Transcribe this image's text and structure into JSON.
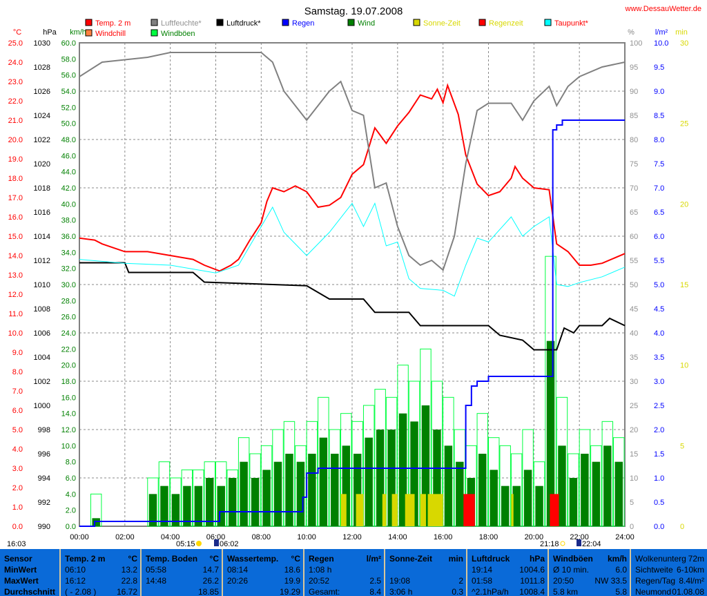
{
  "header": {
    "title": "Samstag. 19.07.2008",
    "site": "www.DessauWetter.de"
  },
  "legend": [
    {
      "label": "Temp. 2 m",
      "color": "#ff0000",
      "text_color": "#ff0000"
    },
    {
      "label": "Luftfeuchte*",
      "color": "#808080",
      "text_color": "#909090"
    },
    {
      "label": "Luftdruck*",
      "color": "#000000",
      "text_color": "#000000"
    },
    {
      "label": "Regen",
      "color": "#0000ff",
      "text_color": "#0000ff"
    },
    {
      "label": "Wind",
      "color": "#008000",
      "text_color": "#008000"
    },
    {
      "label": "Sonne-Zeit",
      "color": "#d8d800",
      "text_color": "#d8d800"
    },
    {
      "label": "Regenzeit",
      "color": "#ff0000",
      "text_color": "#d8d800"
    },
    {
      "label": "Taupunkt*",
      "color": "#00ffff",
      "text_color": "#ff0000"
    },
    {
      "label": "Windchill",
      "color": "#ff8040",
      "text_color": "#ff0000"
    },
    {
      "label": "Windböen",
      "color": "#00ff40",
      "text_color": "#008000"
    }
  ],
  "chart_data": {
    "type": "line",
    "title": "Samstag. 19.07.2008",
    "grid": true,
    "legend_placement": "top",
    "axes": {
      "temp": {
        "unit": "°C",
        "range": [
          0,
          25
        ],
        "color": "#ff0000"
      },
      "pressure": {
        "unit": "hPa",
        "range": [
          990,
          1030
        ],
        "color": "#000000"
      },
      "wind": {
        "unit": "km/h",
        "range": [
          0,
          60
        ],
        "color": "#008000"
      },
      "humidity": {
        "unit": "%",
        "range": [
          0,
          100
        ],
        "color": "#909090"
      },
      "rain": {
        "unit": "l/m²",
        "range": [
          0,
          10
        ],
        "color": "#0000ff"
      },
      "sun": {
        "unit": "min",
        "range": [
          0,
          30
        ],
        "color": "#d8d800"
      },
      "x": {
        "range": [
          "00:00",
          "24:00"
        ],
        "ticks": [
          "00:00",
          "02:00",
          "04:00",
          "06:00",
          "08:00",
          "10:00",
          "12:00",
          "14:00",
          "16:00",
          "18:00",
          "20:00",
          "22:00",
          "24:00"
        ]
      }
    },
    "series": [
      {
        "name": "Temp. 2 m",
        "axis": "temp",
        "color": "#ff0000",
        "x": [
          0,
          0.67,
          1,
          1.5,
          2,
          3,
          4,
          5,
          5.5,
          6.17,
          6.67,
          7,
          7.5,
          8,
          8.25,
          8.5,
          9,
          9.5,
          10,
          10.5,
          11,
          11.5,
          12,
          12.5,
          13,
          13.5,
          14,
          14.5,
          15,
          15.5,
          15.75,
          16,
          16.2,
          16.67,
          17,
          17.5,
          18,
          18.5,
          19,
          19.17,
          19.5,
          20,
          20.67,
          21,
          21.5,
          22,
          22.5,
          23,
          24
        ],
        "y": [
          14.9,
          14.8,
          14.6,
          14.4,
          14.2,
          14.2,
          14.0,
          13.8,
          13.5,
          13.2,
          13.5,
          13.8,
          14.8,
          15.7,
          16.8,
          17.5,
          17.3,
          17.6,
          17.3,
          16.5,
          16.6,
          17.0,
          18.2,
          18.7,
          20.6,
          19.8,
          20.7,
          21.4,
          22.3,
          22.1,
          22.6,
          21.9,
          22.8,
          21.3,
          19.2,
          17.7,
          17.1,
          17.3,
          18.0,
          18.6,
          18.0,
          17.5,
          17.4,
          14.6,
          14.2,
          13.5,
          13.5,
          13.6,
          14.1
        ]
      },
      {
        "name": "Luftfeuchte*",
        "axis": "humidity",
        "color": "#808080",
        "x": [
          0,
          1,
          2,
          3,
          4,
          8,
          8.5,
          9,
          9.5,
          10,
          11,
          11.5,
          12,
          12.5,
          13,
          13.5,
          14,
          14.5,
          15,
          15.5,
          16,
          16.5,
          17,
          17.5,
          18,
          19,
          19.5,
          20,
          20.67,
          21,
          21.5,
          22,
          23,
          24
        ],
        "y": [
          93,
          96,
          96.5,
          97,
          98,
          98,
          96,
          90,
          87,
          84,
          90,
          92,
          86,
          85,
          70,
          71,
          62,
          56,
          54,
          55,
          53,
          60,
          75,
          86,
          87.5,
          87.5,
          84,
          88,
          91,
          87,
          91,
          93,
          95,
          96
        ]
      },
      {
        "name": "Luftdruck*",
        "axis": "pressure",
        "color": "#000000",
        "x": [
          0,
          2,
          2.17,
          5,
          5.5,
          10,
          11,
          12.5,
          13,
          14.5,
          15,
          18,
          18.5,
          19.5,
          20,
          21,
          21.33,
          21.75,
          22,
          23,
          23.33,
          24
        ],
        "y": [
          1011.8,
          1011.8,
          1011.0,
          1011.0,
          1010.2,
          1009.9,
          1008.8,
          1008.8,
          1007.7,
          1007.7,
          1006.6,
          1006.6,
          1005.8,
          1005.4,
          1004.6,
          1004.6,
          1006.4,
          1006.0,
          1006.6,
          1006.6,
          1007.2,
          1006.6
        ]
      },
      {
        "name": "Taupunkt*",
        "axis": "temp",
        "color": "#00ffff",
        "x": [
          0,
          2,
          4,
          6,
          7,
          8,
          8.5,
          9,
          10,
          11,
          12,
          12.5,
          13,
          13.5,
          14,
          14.5,
          15,
          16,
          16.5,
          17,
          17.5,
          18,
          19,
          19.5,
          20,
          20.67,
          21,
          21.5,
          22,
          23,
          24
        ],
        "y": [
          13.8,
          13.6,
          13.5,
          13.1,
          13.5,
          15.5,
          16.5,
          15.2,
          14.0,
          15.2,
          16.7,
          15.5,
          16.7,
          14.5,
          14.7,
          12.8,
          12.3,
          12.2,
          11.9,
          13.5,
          14.9,
          14.7,
          16.0,
          15.0,
          15.5,
          16.0,
          12.5,
          12.4,
          12.6,
          12.9,
          13.4
        ]
      },
      {
        "name": "Regen",
        "axis": "rain",
        "color": "#0000ff",
        "step": true,
        "x": [
          0,
          0.67,
          6.17,
          9.67,
          9.83,
          10,
          10.5,
          16.83,
          17,
          17.25,
          17.5,
          18,
          20.67,
          20.83,
          21,
          21.25,
          24
        ],
        "y": [
          0,
          0.1,
          0.3,
          0.3,
          0.6,
          1.1,
          1.2,
          1.2,
          2.5,
          2.9,
          3.0,
          3.1,
          3.1,
          8.2,
          8.3,
          8.4,
          8.4
        ]
      },
      {
        "name": "Windböen",
        "axis": "wind",
        "color": "#00ff40",
        "values_every_30min": [
          0,
          4,
          0,
          0,
          0,
          0,
          6,
          8,
          6,
          7,
          7,
          8,
          8,
          7,
          11,
          9,
          10,
          12,
          13,
          10,
          13,
          16,
          12,
          14,
          13,
          15,
          17,
          16,
          20,
          18,
          22,
          18,
          16,
          12,
          10,
          14,
          11,
          10,
          9,
          12,
          8,
          33.5,
          16,
          9,
          12,
          10,
          13,
          11
        ]
      },
      {
        "name": "Wind",
        "axis": "wind",
        "color": "#008000",
        "values_every_30min": [
          0,
          1,
          0,
          0,
          0,
          0,
          4,
          5,
          4,
          5,
          5,
          6,
          5,
          6,
          8,
          6,
          7,
          8,
          9,
          8,
          9,
          11,
          9,
          10,
          9,
          11,
          12,
          12,
          14,
          13,
          15,
          12,
          10,
          8,
          6,
          9,
          7,
          5,
          5,
          7,
          5,
          23,
          10,
          6,
          9,
          8,
          10,
          8
        ]
      },
      {
        "name": "Sonne-Zeit",
        "axis": "sun",
        "color": "#d8d800",
        "bars": [
          [
            11.5,
            11.75,
            2
          ],
          [
            12.17,
            12.5,
            2
          ],
          [
            13.33,
            13.5,
            2
          ],
          [
            13.75,
            14,
            2
          ],
          [
            14.33,
            14.75,
            2
          ],
          [
            15,
            15.25,
            2
          ],
          [
            15.33,
            16,
            2
          ],
          [
            19,
            19.1,
            2
          ]
        ]
      },
      {
        "name": "Regenzeit",
        "axis": "sun",
        "color": "#ff0000",
        "bars": [
          [
            16.9,
            17.4,
            2
          ],
          [
            20.7,
            21.1,
            2
          ]
        ]
      }
    ],
    "sun_markers": {
      "left": "16:03",
      "sunrise": "05:15",
      "moonrise_left": "06:02",
      "sunset": "21:18",
      "moonset": "22:04"
    }
  },
  "footer": {
    "cols": [
      {
        "rows": [
          [
            "Sensor",
            ""
          ],
          [
            "MinWert",
            ""
          ],
          [
            "MaxWert",
            ""
          ],
          [
            "Durchschnitt",
            ""
          ]
        ],
        "bold": true
      },
      {
        "rows": [
          [
            "Temp. 2 m",
            "°C"
          ],
          [
            "06:10",
            "13.2"
          ],
          [
            "16:12",
            "22.8"
          ],
          [
            "( - 2.08 )",
            "16.72"
          ]
        ]
      },
      {
        "rows": [
          [
            "Temp. Boden",
            "°C"
          ],
          [
            "05:58",
            "14.7"
          ],
          [
            "14:48",
            "26.2"
          ],
          [
            "",
            "18.85"
          ]
        ]
      },
      {
        "rows": [
          [
            "Wassertemp.",
            "°C"
          ],
          [
            "08:14",
            "18.6"
          ],
          [
            "20:26",
            "19.9"
          ],
          [
            "",
            "19.29"
          ]
        ]
      },
      {
        "rows": [
          [
            "Regen",
            "l/m²"
          ],
          [
            "1:08 h",
            ""
          ],
          [
            "20:52",
            "2.5"
          ],
          [
            "Gesamt:",
            "8.4"
          ]
        ]
      },
      {
        "rows": [
          [
            "Sonne-Zeit",
            "min"
          ],
          [
            "",
            ""
          ],
          [
            "19:08",
            "2"
          ],
          [
            "3:06 h",
            "0.3"
          ]
        ]
      },
      {
        "rows": [
          [
            "Luftdruck",
            "hPa"
          ],
          [
            "19:14",
            "1004.6"
          ],
          [
            "01:58",
            "1011.8"
          ],
          [
            "^2.1hPa/h",
            "1008.4"
          ]
        ]
      },
      {
        "rows": [
          [
            "Windböen",
            "km/h"
          ],
          [
            "Ø 10 min.",
            "6.0"
          ],
          [
            "20:50",
            "NW 33.5"
          ],
          [
            "5.8 km",
            "5.8"
          ]
        ]
      },
      {
        "rows": [
          [
            "Wolkenunterg",
            "72m"
          ],
          [
            "Sichtweite",
            "6-10km"
          ],
          [
            "Regen/Tag",
            "8.4l/m²"
          ],
          [
            "Neumond",
            "01.08.08"
          ]
        ]
      }
    ]
  }
}
